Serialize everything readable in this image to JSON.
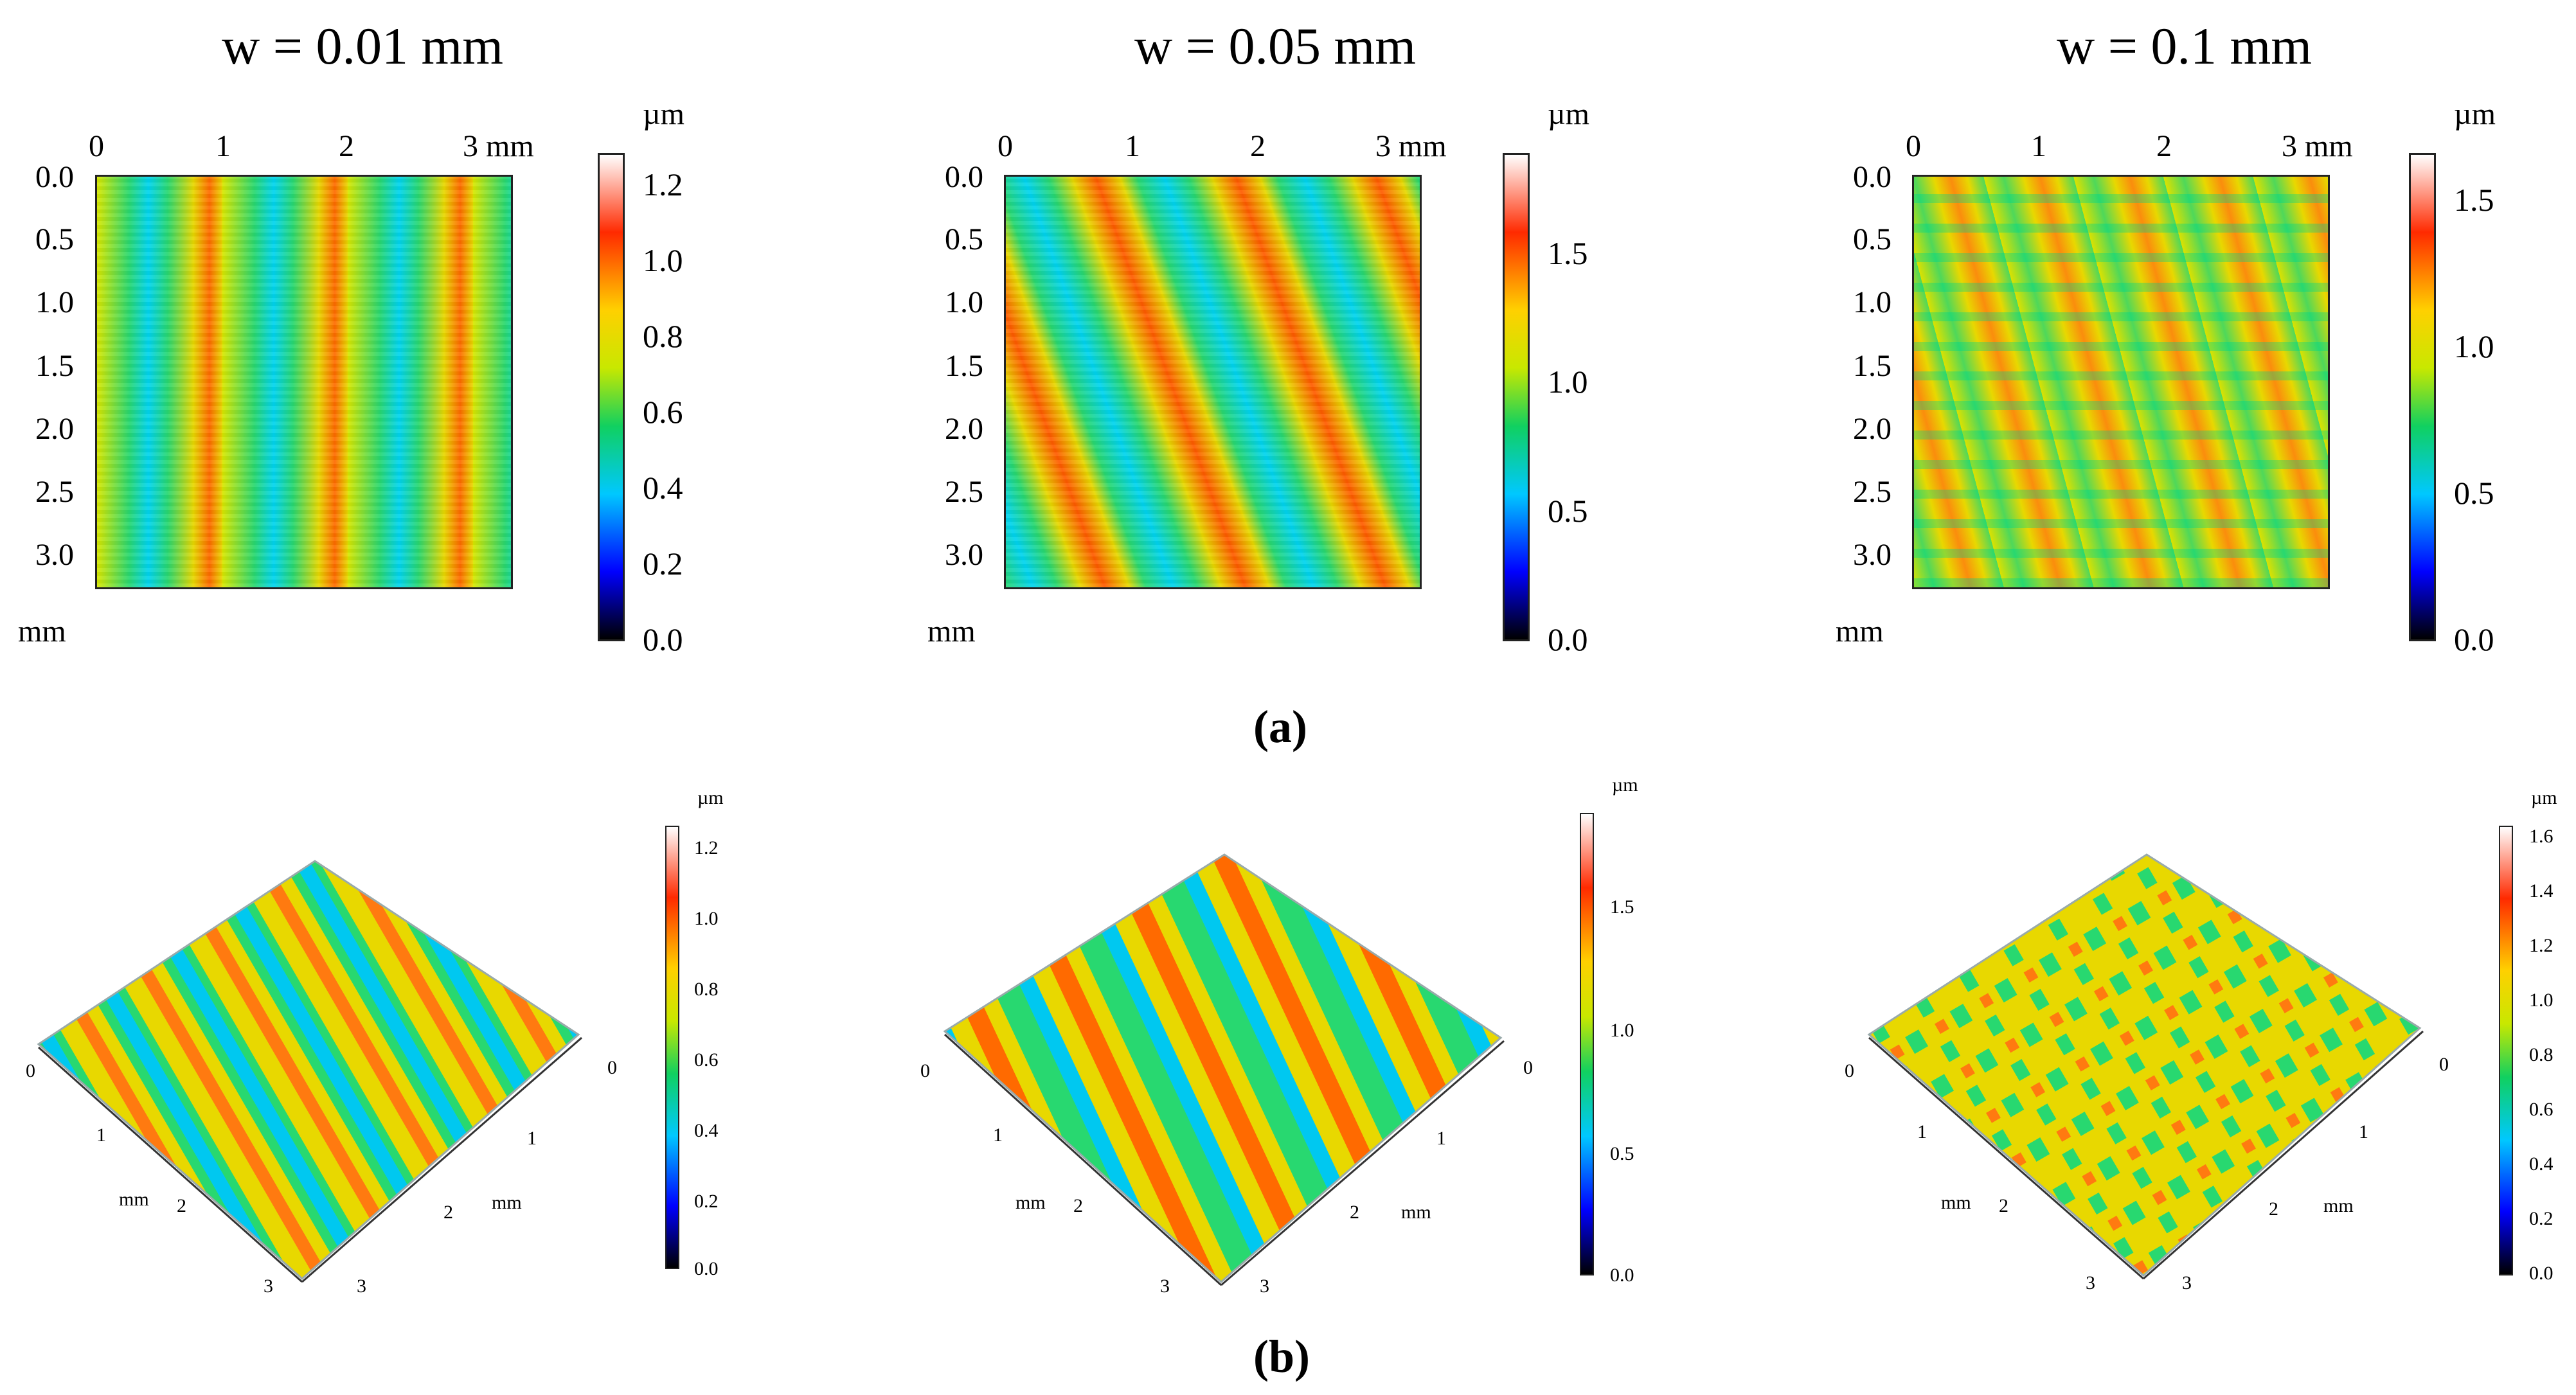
{
  "panels": [
    {
      "title": "w = 0.01 mm",
      "colorbar": {
        "unit": "µm",
        "ticks": [
          "0.0",
          "0.2",
          "0.4",
          "0.6",
          "0.8",
          "1.0",
          "1.2"
        ]
      },
      "x_ticks": [
        "0",
        "1",
        "2",
        "3 mm"
      ],
      "y_ticks": [
        "0.0",
        "0.5",
        "1.0",
        "1.5",
        "2.0",
        "2.5",
        "3.0"
      ],
      "y_unit": "mm",
      "iso_colorbar": {
        "unit": "µm",
        "ticks": [
          "0.0",
          "0.2",
          "0.4",
          "0.6",
          "0.8",
          "1.0",
          "1.2"
        ]
      }
    },
    {
      "title": "w = 0.05 mm",
      "colorbar": {
        "unit": "µm",
        "ticks": [
          "0.0",
          "0.5",
          "1.0",
          "1.5"
        ]
      },
      "x_ticks": [
        "0",
        "1",
        "2",
        "3 mm"
      ],
      "y_ticks": [
        "0.0",
        "0.5",
        "1.0",
        "1.5",
        "2.0",
        "2.5",
        "3.0"
      ],
      "y_unit": "mm",
      "iso_colorbar": {
        "unit": "µm",
        "ticks": [
          "0.0",
          "0.5",
          "1.0",
          "1.5"
        ]
      }
    },
    {
      "title": "w = 0.1 mm",
      "colorbar": {
        "unit": "µm",
        "ticks": [
          "0.0",
          "0.5",
          "1.0",
          "1.5"
        ]
      },
      "x_ticks": [
        "0",
        "1",
        "2",
        "3 mm"
      ],
      "y_ticks": [
        "0.0",
        "0.5",
        "1.0",
        "1.5",
        "2.0",
        "2.5",
        "3.0"
      ],
      "y_unit": "mm",
      "iso_colorbar": {
        "unit": "µm",
        "ticks": [
          "0.0",
          "0.2",
          "0.4",
          "0.6",
          "0.8",
          "1.0",
          "1.2",
          "1.4",
          "1.6"
        ]
      }
    }
  ],
  "iso_axes": {
    "left_ticks": [
      "0",
      "1",
      "2",
      "3"
    ],
    "right_ticks": [
      "0",
      "1",
      "2",
      "3"
    ],
    "unit": "mm"
  },
  "subfig_labels": {
    "a": "(a)",
    "b": "(b)"
  },
  "colors": {
    "low": "#0000ff",
    "mid": "#10d060",
    "high": "#ff2a00"
  }
}
